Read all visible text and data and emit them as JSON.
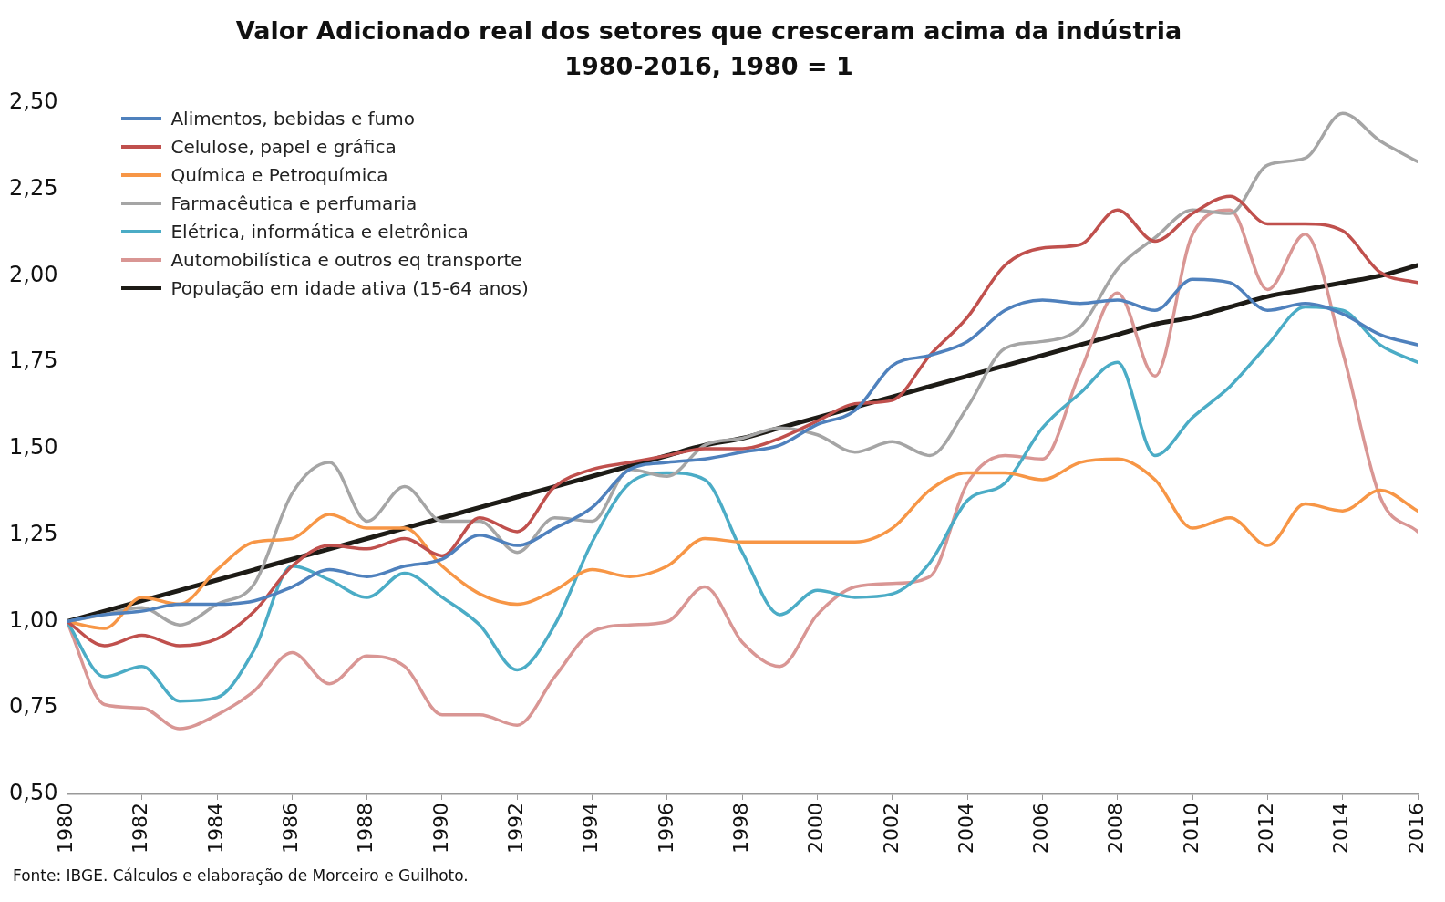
{
  "chart_data": {
    "type": "line",
    "title": "Valor Adicionado real dos setores que cresceram acima da indústria",
    "subtitle": "1980-2016, 1980 = 1",
    "x": [
      1980,
      1981,
      1982,
      1983,
      1984,
      1985,
      1986,
      1987,
      1988,
      1989,
      1990,
      1991,
      1992,
      1993,
      1994,
      1995,
      1996,
      1997,
      1998,
      1999,
      2000,
      2001,
      2002,
      2003,
      2004,
      2005,
      2006,
      2007,
      2008,
      2009,
      2010,
      2011,
      2012,
      2013,
      2014,
      2015,
      2016
    ],
    "series": [
      {
        "name": "Alimentos, bebidas e fumo",
        "color": "#4f81bd",
        "values": [
          1.0,
          1.02,
          1.03,
          1.05,
          1.05,
          1.06,
          1.1,
          1.15,
          1.13,
          1.16,
          1.18,
          1.25,
          1.22,
          1.27,
          1.33,
          1.44,
          1.46,
          1.47,
          1.49,
          1.51,
          1.57,
          1.61,
          1.74,
          1.77,
          1.81,
          1.9,
          1.93,
          1.92,
          1.93,
          1.9,
          1.99,
          1.98,
          1.9,
          1.92,
          1.89,
          1.83,
          1.8
        ]
      },
      {
        "name": "Celulose, papel e gráfica",
        "color": "#c0504d",
        "values": [
          1.0,
          0.93,
          0.96,
          0.93,
          0.95,
          1.03,
          1.16,
          1.22,
          1.21,
          1.24,
          1.19,
          1.3,
          1.26,
          1.39,
          1.44,
          1.46,
          1.48,
          1.5,
          1.5,
          1.53,
          1.58,
          1.63,
          1.64,
          1.77,
          1.88,
          2.03,
          2.08,
          2.09,
          2.19,
          2.1,
          2.18,
          2.23,
          2.15,
          2.15,
          2.13,
          2.01,
          1.98
        ]
      },
      {
        "name": "Química e Petroquímica",
        "color": "#f79646",
        "values": [
          1.0,
          0.98,
          1.07,
          1.05,
          1.15,
          1.23,
          1.24,
          1.31,
          1.27,
          1.27,
          1.16,
          1.08,
          1.05,
          1.09,
          1.15,
          1.13,
          1.16,
          1.24,
          1.23,
          1.23,
          1.23,
          1.23,
          1.27,
          1.38,
          1.43,
          1.43,
          1.41,
          1.46,
          1.47,
          1.41,
          1.27,
          1.3,
          1.22,
          1.34,
          1.32,
          1.38,
          1.32
        ]
      },
      {
        "name": "Farmacêutica e perfumaria",
        "color": "#a5a5a5",
        "values": [
          1.0,
          1.02,
          1.04,
          0.99,
          1.05,
          1.11,
          1.37,
          1.46,
          1.29,
          1.39,
          1.29,
          1.29,
          1.2,
          1.3,
          1.29,
          1.44,
          1.42,
          1.51,
          1.53,
          1.56,
          1.54,
          1.49,
          1.52,
          1.48,
          1.62,
          1.79,
          1.81,
          1.85,
          2.02,
          2.11,
          2.19,
          2.18,
          2.32,
          2.34,
          2.47,
          2.39,
          2.33
        ]
      },
      {
        "name": "Elétrica, informática e eletrônica",
        "color": "#4bacc6",
        "values": [
          1.0,
          0.84,
          0.87,
          0.77,
          0.78,
          0.92,
          1.16,
          1.12,
          1.07,
          1.14,
          1.07,
          0.99,
          0.86,
          0.99,
          1.23,
          1.4,
          1.43,
          1.41,
          1.2,
          1.02,
          1.09,
          1.07,
          1.08,
          1.17,
          1.35,
          1.4,
          1.56,
          1.66,
          1.75,
          1.48,
          1.59,
          1.68,
          1.8,
          1.91,
          1.9,
          1.8,
          1.75
        ]
      },
      {
        "name": "Automobilística e outros eq transporte",
        "color": "#d99694",
        "values": [
          1.0,
          0.76,
          0.75,
          0.69,
          0.73,
          0.8,
          0.91,
          0.82,
          0.9,
          0.87,
          0.73,
          0.73,
          0.7,
          0.84,
          0.97,
          0.99,
          1.0,
          1.1,
          0.94,
          0.87,
          1.02,
          1.1,
          1.11,
          1.13,
          1.4,
          1.48,
          1.47,
          1.72,
          1.95,
          1.71,
          2.12,
          2.19,
          1.96,
          2.12,
          1.78,
          1.36,
          1.26
        ]
      },
      {
        "name": "População em idade ativa (15-64 anos)",
        "color": "#1d1b16",
        "values": [
          1.0,
          1.03,
          1.06,
          1.09,
          1.12,
          1.15,
          1.18,
          1.21,
          1.24,
          1.27,
          1.3,
          1.33,
          1.36,
          1.39,
          1.42,
          1.45,
          1.48,
          1.51,
          1.53,
          1.56,
          1.59,
          1.62,
          1.65,
          1.68,
          1.71,
          1.74,
          1.77,
          1.8,
          1.83,
          1.86,
          1.88,
          1.91,
          1.94,
          1.96,
          1.98,
          2.0,
          2.03
        ]
      }
    ],
    "xlim": [
      1980,
      2016
    ],
    "xticks": [
      1980,
      1982,
      1984,
      1986,
      1988,
      1990,
      1992,
      1994,
      1996,
      1998,
      2000,
      2002,
      2004,
      2006,
      2008,
      2010,
      2012,
      2014,
      2016
    ],
    "ylim": [
      0.5,
      2.5
    ],
    "yticks": [
      {
        "value": 0.5,
        "label": "0,50"
      },
      {
        "value": 0.75,
        "label": "0,75"
      },
      {
        "value": 1,
        "label": "1,00"
      },
      {
        "value": 1.25,
        "label": "1,25"
      },
      {
        "value": 1.5,
        "label": "1,50"
      },
      {
        "value": 1.75,
        "label": "1,75"
      },
      {
        "value": 2,
        "label": "2,00"
      },
      {
        "value": 2.25,
        "label": "2,25"
      },
      {
        "value": 2.5,
        "label": "2,50"
      }
    ],
    "grid": false,
    "legend": "top left",
    "marker": "none",
    "line_style": "solid",
    "annotations": [
      "Fonte: IBGE. Cálculos e elaboração de Morceiro e Guilhoto."
    ]
  }
}
